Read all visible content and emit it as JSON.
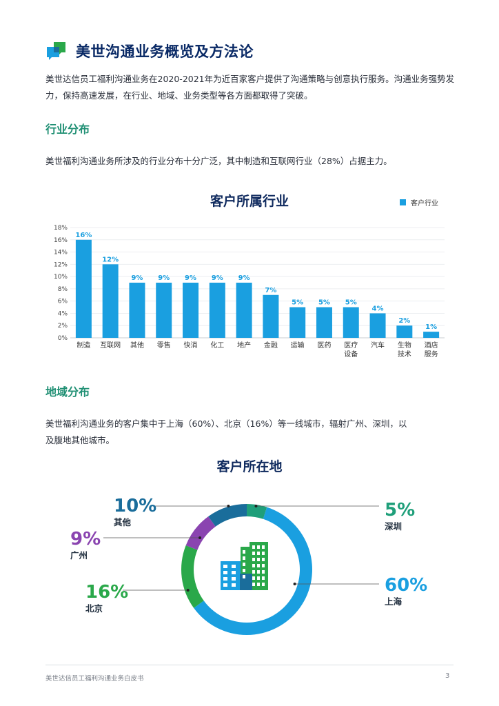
{
  "header": {
    "title": "美世沟通业务概览及方法论"
  },
  "intro": "美世达信员工福利沟通业务在2020-2021年为近百家客户提供了沟通策略与创意执行服务。沟通业务强势发力，保持高速发展，在行业、地域、业务类型等各方面都取得了突破。",
  "industry_section": {
    "heading": "行业分布",
    "description": "美世福利沟通业务所涉及的行业分布十分广泛，其中制造和互联网行业（28%）占据主力。"
  },
  "region_section": {
    "heading": "地域分布",
    "description": "美世福利沟通业务的客户集中于上海（60%）、北京（16%）等一线城市，辐射广州、深圳，以及腹地其他城市。"
  },
  "chart_data": [
    {
      "type": "bar",
      "title": "客户所属行业",
      "legend": [
        "客户行业"
      ],
      "legend_position": "top-right",
      "categories": [
        "制造",
        "互联网",
        "其他",
        "零售",
        "快消",
        "化工",
        "地产",
        "金融",
        "运输",
        "医药",
        "医疗设备",
        "汽车",
        "生物技术",
        "酒店服务"
      ],
      "category_lines": [
        [
          "制造"
        ],
        [
          "互联网"
        ],
        [
          "其他"
        ],
        [
          "零售"
        ],
        [
          "快消"
        ],
        [
          "化工"
        ],
        [
          "地产"
        ],
        [
          "金融"
        ],
        [
          "运输"
        ],
        [
          "医药"
        ],
        [
          "医疗",
          "设备"
        ],
        [
          "汽车"
        ],
        [
          "生物",
          "技术"
        ],
        [
          "酒店",
          "服务"
        ]
      ],
      "series": [
        {
          "name": "客户行业",
          "values": [
            16,
            12,
            9,
            9,
            9,
            9,
            9,
            7,
            5,
            5,
            5,
            4,
            2,
            1
          ]
        }
      ],
      "data_labels": [
        "16%",
        "12%",
        "9%",
        "9%",
        "9%",
        "9%",
        "9%",
        "7%",
        "5%",
        "5%",
        "5%",
        "4%",
        "2%",
        "1%"
      ],
      "yticks": [
        "0%",
        "2%",
        "4%",
        "6%",
        "8%",
        "10%",
        "12%",
        "14%",
        "16%",
        "18%"
      ],
      "ylim": [
        0,
        18
      ],
      "grid": true,
      "color": "#1a9fe0"
    },
    {
      "type": "pie",
      "title": "客户所在地",
      "slices": [
        {
          "label": "深圳",
          "value": 5,
          "text": "5%",
          "color": "#1f9f7a"
        },
        {
          "label": "上海",
          "value": 60,
          "text": "60%",
          "color": "#1a9fe0"
        },
        {
          "label": "北京",
          "value": 16,
          "text": "16%",
          "color": "#2aa84a"
        },
        {
          "label": "广州",
          "value": 9,
          "text": "9%",
          "color": "#8a44b0"
        },
        {
          "label": "其他",
          "value": 10,
          "text": "10%",
          "color": "#1a6d9b"
        }
      ]
    }
  ],
  "footer": {
    "text": "美世达信员工福利沟通业务白皮书",
    "page": "3"
  }
}
